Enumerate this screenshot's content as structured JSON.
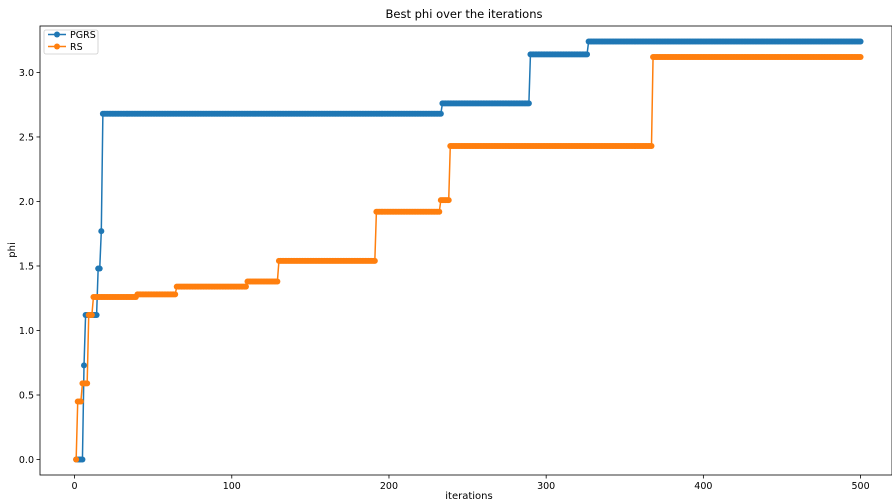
{
  "chart_data": {
    "type": "line",
    "title": "Best phi over the iterations",
    "xlabel": "iterations",
    "ylabel": "phi",
    "xlim": [
      -22,
      520
    ],
    "ylim": [
      -0.12,
      3.36
    ],
    "xticks": [
      0,
      100,
      200,
      300,
      400,
      500
    ],
    "yticks": [
      0.0,
      0.5,
      1.0,
      1.5,
      2.0,
      2.5,
      3.0
    ],
    "xtick_labels": [
      "0",
      "100",
      "200",
      "300",
      "400",
      "500"
    ],
    "ytick_labels": [
      "0.0",
      "0.5",
      "1.0",
      "1.5",
      "2.0",
      "2.5",
      "3.0"
    ],
    "grid": false,
    "legend_position": "top-left",
    "n_points": 500,
    "series": [
      {
        "name": "PGRS",
        "color": "#1f77b4",
        "marker": "circle",
        "steps": [
          {
            "from": 1,
            "value": 0.0
          },
          {
            "from": 6,
            "value": 0.73
          },
          {
            "from": 7,
            "value": 1.12
          },
          {
            "from": 15,
            "value": 1.48
          },
          {
            "from": 17,
            "value": 1.77
          },
          {
            "from": 18,
            "value": 2.68
          },
          {
            "from": 234,
            "value": 2.76
          },
          {
            "from": 290,
            "value": 3.14
          },
          {
            "from": 327,
            "value": 3.24
          }
        ]
      },
      {
        "name": "RS",
        "color": "#ff7f0e",
        "marker": "circle",
        "steps": [
          {
            "from": 1,
            "value": 0.0
          },
          {
            "from": 2,
            "value": 0.45
          },
          {
            "from": 5,
            "value": 0.59
          },
          {
            "from": 9,
            "value": 1.12
          },
          {
            "from": 12,
            "value": 1.26
          },
          {
            "from": 40,
            "value": 1.28
          },
          {
            "from": 65,
            "value": 1.34
          },
          {
            "from": 110,
            "value": 1.38
          },
          {
            "from": 130,
            "value": 1.54
          },
          {
            "from": 192,
            "value": 1.92
          },
          {
            "from": 233,
            "value": 2.01
          },
          {
            "from": 239,
            "value": 2.43
          },
          {
            "from": 368,
            "value": 3.12
          }
        ]
      }
    ]
  }
}
